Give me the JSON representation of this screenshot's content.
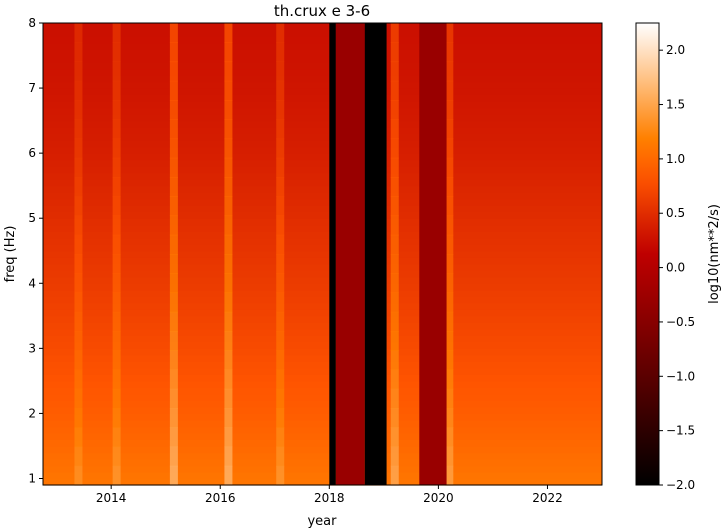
{
  "chart_data": {
    "type": "heatmap",
    "title": "th.crux e 3-6",
    "xlabel": "year",
    "ylabel": "freq (Hz)",
    "colorbar_label": "log10(nm**2/s)",
    "colormap": "gist_heat",
    "xlim": [
      2012.75,
      2023.0
    ],
    "ylim": [
      0.9,
      8.0
    ],
    "clim": [
      -2.0,
      2.25
    ],
    "x_ticks": [
      2014,
      2016,
      2018,
      2020,
      2022
    ],
    "x_tick_labels": [
      "2014",
      "2016",
      "2018",
      "2020",
      "2022"
    ],
    "y_ticks": [
      1,
      2,
      3,
      4,
      5,
      6,
      7,
      8
    ],
    "y_tick_labels": [
      "1",
      "2",
      "3",
      "4",
      "5",
      "6",
      "7",
      "8"
    ],
    "colorbar_ticks": [
      -2.0,
      -1.5,
      -1.0,
      -0.5,
      0.0,
      0.5,
      1.0,
      1.5,
      2.0
    ],
    "colorbar_tick_labels": [
      "−2.0",
      "−1.5",
      "−1.0",
      "−0.5",
      "0.0",
      "0.5",
      "1.0",
      "1.5",
      "2.0"
    ],
    "baseline_levels": {
      "freq": [
        1.0,
        1.5,
        2.0,
        3.0,
        4.0,
        5.0,
        6.0,
        7.0,
        8.0
      ],
      "value": [
        1.1,
        1.0,
        0.9,
        0.75,
        0.62,
        0.5,
        0.38,
        0.3,
        0.25
      ]
    },
    "gap_intervals": [
      {
        "start": 2018.0,
        "end": 2018.12,
        "value": -2.0
      },
      {
        "start": 2018.12,
        "end": 2018.65,
        "value": -0.3
      },
      {
        "start": 2018.65,
        "end": 2019.05,
        "value": -2.0
      },
      {
        "start": 2019.65,
        "end": 2020.15,
        "value": -0.3
      }
    ],
    "bright_streaks": [
      {
        "year": 2013.4,
        "value": 0.25
      },
      {
        "year": 2014.1,
        "value": 0.3
      },
      {
        "year": 2015.15,
        "value": 0.55
      },
      {
        "year": 2016.15,
        "value": 0.55
      },
      {
        "year": 2017.1,
        "value": 0.3
      },
      {
        "year": 2019.2,
        "value": 0.45
      },
      {
        "year": 2020.2,
        "value": 0.4
      }
    ]
  }
}
